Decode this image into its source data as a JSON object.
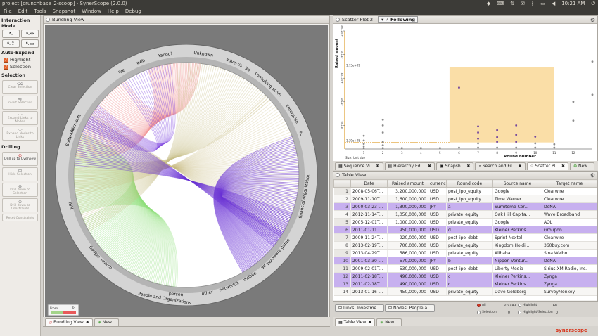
{
  "window": {
    "title": "project [crunchbase_2-scoop] - SynerScope (2.0.0)",
    "clock": "10:21 AM",
    "tray_icons": [
      "dropbox-icon",
      "keyboard-icon",
      "network-icon",
      "mail-icon",
      "bluetooth-icon",
      "battery-icon",
      "volume-icon",
      "power-icon"
    ]
  },
  "menu": [
    "File",
    "Edit",
    "Tools",
    "Snapshot",
    "Window",
    "Help",
    "Debug"
  ],
  "left_panel": {
    "interaction_mode": "Interaction Mode",
    "auto_expand": "Auto-Expand",
    "highlight": "Highlight",
    "selection_chk": "Selection",
    "selection_title": "Selection",
    "clear_selection": "Clear Selection",
    "invert_selection": "Invert Selection",
    "expand_links": "Expand Links to Nodes",
    "expand_nodes": "Expand Nodes to Links",
    "drilling": "Drilling",
    "drill_up": "Drill up to Overview",
    "hide_selection": "Hide Selection",
    "drill_down_sel": "Drill down to Selection",
    "drill_down_con": "Drill down to Constraints",
    "reset_con": "Reset Constraints"
  },
  "bundling": {
    "title": "Bundling View",
    "labels": [
      "Unknown",
      "advertis",
      "3d",
      "consulting scom",
      "enterprise",
      "ec",
      "web",
      "Yahoo!",
      "file",
      "Software",
      "Microsoft",
      "IBM",
      "Google",
      "search",
      "financial organization",
      "hardware game",
      "mobile",
      "network",
      "other",
      "tt",
      "ad",
      "person",
      "People and Organizations"
    ],
    "legend_from": "From",
    "legend_to": "To",
    "tab": "Bundling View",
    "new_tab": "New..."
  },
  "scatter": {
    "title": "Scatter Plot 2",
    "following": "Following",
    "ylabel": "Raised amount",
    "xlabel": "Round number",
    "size_note": "Size: Unit size",
    "y_top_value": "1.73e+09",
    "y_bottom_value": "1.39e+08"
  },
  "chart_data": {
    "type": "scatter",
    "title": "",
    "xlabel": "Round number",
    "ylabel": "Raised amount",
    "xlim": [
      0,
      13
    ],
    "ylim": [
      0,
      2500000000
    ],
    "x_ticks": [
      1,
      2,
      3,
      4,
      5,
      6,
      7,
      8,
      9,
      10,
      11,
      12
    ],
    "y_ticks": [
      {
        "value": 500000000,
        "label": "5e+08"
      },
      {
        "value": 1000000000,
        "label": "1e+09"
      },
      {
        "value": 1500000000,
        "label": "1.5e+09"
      },
      {
        "value": 2000000000,
        "label": "2e+09"
      },
      {
        "value": 2500000000,
        "label": "2.5e+09"
      }
    ],
    "selection_range": {
      "x": [
        5.5,
        11
      ],
      "y": [
        139000000,
        1730000000
      ]
    },
    "points": [
      {
        "x": 1,
        "y": 20000000
      },
      {
        "x": 1,
        "y": 60000000
      },
      {
        "x": 1,
        "y": 110000000
      },
      {
        "x": 1,
        "y": 180000000
      },
      {
        "x": 1,
        "y": 280000000
      },
      {
        "x": 2,
        "y": 20000000
      },
      {
        "x": 2,
        "y": 80000000
      },
      {
        "x": 2,
        "y": 150000000
      },
      {
        "x": 2,
        "y": 350000000
      },
      {
        "x": 2,
        "y": 500000000
      },
      {
        "x": 2,
        "y": 620000000
      },
      {
        "x": 3,
        "y": 20000000
      },
      {
        "x": 4,
        "y": 20000000
      },
      {
        "x": 5,
        "y": 20000000
      },
      {
        "x": 6,
        "y": 30000000
      },
      {
        "x": 6,
        "y": 1300000000
      },
      {
        "x": 7,
        "y": 30000000
      },
      {
        "x": 7,
        "y": 120000000
      },
      {
        "x": 7,
        "y": 220000000
      },
      {
        "x": 7,
        "y": 350000000
      },
      {
        "x": 7,
        "y": 480000000
      },
      {
        "x": 8,
        "y": 30000000
      },
      {
        "x": 8,
        "y": 150000000
      },
      {
        "x": 8,
        "y": 250000000
      },
      {
        "x": 8,
        "y": 400000000
      },
      {
        "x": 9,
        "y": 30000000
      },
      {
        "x": 9,
        "y": 150000000
      },
      {
        "x": 9,
        "y": 300000000
      },
      {
        "x": 9,
        "y": 500000000
      },
      {
        "x": 10,
        "y": 30000000
      },
      {
        "x": 10,
        "y": 120000000
      },
      {
        "x": 10,
        "y": 260000000
      },
      {
        "x": 11,
        "y": 30000000
      },
      {
        "x": 11,
        "y": 100000000
      },
      {
        "x": 12,
        "y": 600000000
      },
      {
        "x": 12,
        "y": 1000000000
      },
      {
        "x": 13,
        "y": 1150000000
      },
      {
        "x": 13,
        "y": 1850000000
      }
    ]
  },
  "view_tabs": [
    {
      "label": "Sequence Vi...",
      "icon": "sequence-icon"
    },
    {
      "label": "Hierarchy Edi...",
      "icon": "hierarchy-icon"
    },
    {
      "label": "Snapsh...",
      "icon": "snapshot-icon"
    },
    {
      "label": "Search and Fil...",
      "icon": "search-icon"
    },
    {
      "label": "Scatter Pl...",
      "icon": "scatter-icon"
    },
    {
      "label": "New...",
      "icon": "plus-icon"
    }
  ],
  "table": {
    "title": "Table View",
    "columns": [
      "",
      "Date",
      "Raised amount",
      "currenc",
      "Round code",
      "Source name",
      "Target name"
    ],
    "rows": [
      {
        "n": "1",
        "date": "2008-05-06T...",
        "amount": "3,200,000,000",
        "cur": "USD",
        "code": "post_ipo_equity",
        "src": "Google",
        "tgt": "Clearwire",
        "hl": false
      },
      {
        "n": "2",
        "date": "2009-11-10T...",
        "amount": "1,600,000,000",
        "cur": "USD",
        "code": "post_ipo_equity",
        "src": "Time Warner",
        "tgt": "Clearwire",
        "hl": false
      },
      {
        "n": "3",
        "date": "2000-03-23T...",
        "amount": "1,300,000,000",
        "cur": "JPY",
        "code": "a",
        "src": "Sumitomo Cor...",
        "tgt": "DeNA",
        "hl": true
      },
      {
        "n": "4",
        "date": "2012-11-14T...",
        "amount": "1,050,000,000",
        "cur": "USD",
        "code": "private_equity",
        "src": "Oak Hill Capita...",
        "tgt": "Wave Broadband",
        "hl": false
      },
      {
        "n": "5",
        "date": "2005-12-01T...",
        "amount": "1,000,000,000",
        "cur": "USD",
        "code": "private_equity",
        "src": "Google",
        "tgt": "AOL",
        "hl": false
      },
      {
        "n": "6",
        "date": "2011-01-11T...",
        "amount": "950,000,000",
        "cur": "USD",
        "code": "d",
        "src": "Kleiner Perkins...",
        "tgt": "Groupon",
        "hl": true
      },
      {
        "n": "7",
        "date": "2009-11-24T...",
        "amount": "920,000,000",
        "cur": "USD",
        "code": "post_ipo_debt",
        "src": "Sprint Nextel",
        "tgt": "Clearwire",
        "hl": false
      },
      {
        "n": "8",
        "date": "2013-02-19T...",
        "amount": "700,000,000",
        "cur": "USD",
        "code": "private_equity",
        "src": "Kingdom Holdi...",
        "tgt": "360buy.com",
        "hl": false
      },
      {
        "n": "9",
        "date": "2013-04-29T...",
        "amount": "586,000,000",
        "cur": "USD",
        "code": "private_equity",
        "src": "Alibaba",
        "tgt": "Sina Weibo",
        "hl": false
      },
      {
        "n": "10",
        "date": "2001-03-30T...",
        "amount": "570,000,000",
        "cur": "JPY",
        "code": "b",
        "src": "Nippon Ventur...",
        "tgt": "DeNA",
        "hl": true
      },
      {
        "n": "11",
        "date": "2009-02-01T...",
        "amount": "530,000,000",
        "cur": "USD",
        "code": "post_ipo_debt",
        "src": "Liberty Media",
        "tgt": "Sirius XM Radio, Inc.",
        "hl": false
      },
      {
        "n": "12",
        "date": "2011-02-18T...",
        "amount": "490,000,000",
        "cur": "USD",
        "code": "c",
        "src": "Kleiner Perkins...",
        "tgt": "Zynga",
        "hl": true
      },
      {
        "n": "13",
        "date": "2011-02-18T...",
        "amount": "490,000,000",
        "cur": "USD",
        "code": "c",
        "src": "Kleiner Perkins...",
        "tgt": "Zynga",
        "hl": true
      },
      {
        "n": "14",
        "date": "2013-01-16T...",
        "amount": "450,000,000",
        "cur": "USD",
        "code": "private_equity",
        "src": "Dave Goldberg",
        "tgt": "SurveyMonkey",
        "hl": false
      }
    ],
    "link_btn": "Links: Investme...",
    "node_btn": "Nodes: People a...",
    "tab": "Table View",
    "new_tab": "New..."
  },
  "filters": {
    "all": "All",
    "all_count": "324483",
    "highlight": "Highlight",
    "highlight_count": "69",
    "selection": "Selection",
    "selection_count": "0",
    "hs": "Highlight/Selection",
    "hs_count": "0"
  },
  "brand": "synerscope"
}
